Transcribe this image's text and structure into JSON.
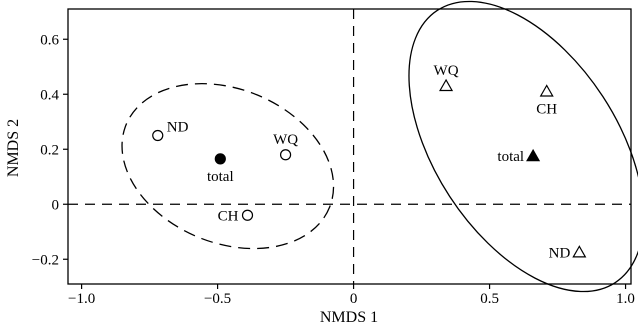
{
  "chart_data": {
    "type": "scatter",
    "xlabel": "NMDS 1",
    "ylabel": "NMDS 2",
    "xlim": [
      -1.05,
      1.02
    ],
    "ylim": [
      -0.29,
      0.71
    ],
    "xticks": [
      -1.0,
      -0.5,
      0,
      0.5,
      1.0
    ],
    "xtick_labels": [
      "−1.0",
      "−0.5",
      "0",
      "0.5",
      "1.0"
    ],
    "yticks": [
      -0.2,
      0,
      0.2,
      0.4,
      0.6
    ],
    "ytick_labels": [
      "−0.2",
      "0",
      "0.2",
      "0.4",
      "0.6"
    ],
    "reference_lines": {
      "x": 0,
      "y": 0,
      "style": "dashed"
    },
    "groups": [
      {
        "marker": "circle",
        "ellipse_style": "dashed",
        "points": [
          {
            "label": "ND",
            "x": -0.72,
            "y": 0.25,
            "filled": false,
            "label_side": "right"
          },
          {
            "label": "WQ",
            "x": -0.25,
            "y": 0.18,
            "filled": false,
            "label_side": "top"
          },
          {
            "label": "CH",
            "x": -0.39,
            "y": -0.04,
            "filled": false,
            "label_side": "left"
          },
          {
            "label": "total",
            "x": -0.49,
            "y": 0.165,
            "filled": true,
            "label_side": "bottom"
          }
        ]
      },
      {
        "marker": "triangle",
        "ellipse_style": "solid",
        "points": [
          {
            "label": "WQ",
            "x": 0.34,
            "y": 0.43,
            "filled": false,
            "label_side": "top"
          },
          {
            "label": "CH",
            "x": 0.71,
            "y": 0.41,
            "filled": false,
            "label_side": "bottom"
          },
          {
            "label": "total",
            "x": 0.66,
            "y": 0.175,
            "filled": true,
            "label_side": "left"
          },
          {
            "label": "ND",
            "x": 0.83,
            "y": -0.175,
            "filled": false,
            "label_side": "left"
          }
        ]
      }
    ]
  }
}
